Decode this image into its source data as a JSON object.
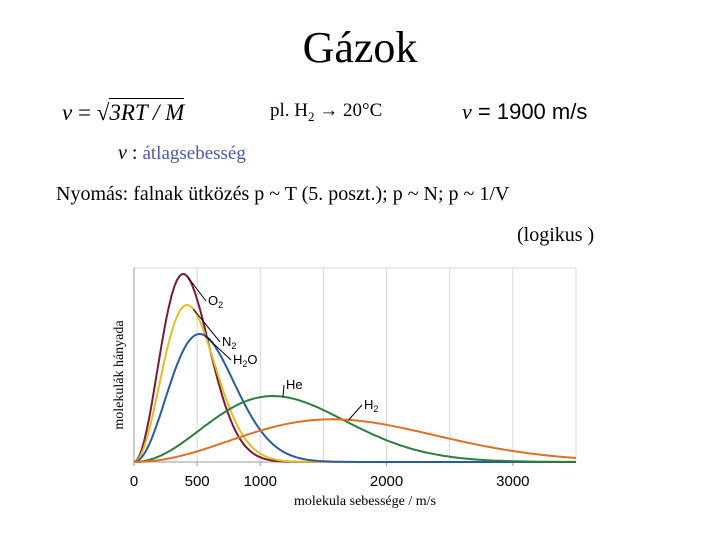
{
  "title": "Gázok",
  "formula": {
    "lhs": "v",
    "eq": "=",
    "rhs": "3RT / M"
  },
  "example": {
    "text": "pl. H",
    "sub": "2",
    "rest": " → 20°C"
  },
  "result": {
    "lhs": "v",
    "eq": " = ",
    "value": "1900 m/s"
  },
  "symbol_def": {
    "symbol": "v",
    "sep": " : ",
    "label": "átlagsebesség"
  },
  "pressure": {
    "text": "Nyomás: falnak ütközés   p ~ T (5. poszt.);    p ~ N;  p ~ 1/V"
  },
  "logikus": "(logikus )",
  "chart_data": {
    "type": "line",
    "xlabel": "molekula sebessége / m/s",
    "ylabel": "molekulák hányada",
    "xlim": [
      0,
      3500
    ],
    "ylim": [
      0,
      1
    ],
    "x_ticks": [
      "0",
      "500",
      "1000",
      "2000",
      "3000"
    ],
    "x_tick_values": [
      0,
      500,
      1000,
      2000,
      3000
    ],
    "grid": true,
    "series": [
      {
        "name": "O2",
        "color": "#7a1a3a",
        "peak_speed": 390,
        "peak": 0.97
      },
      {
        "name": "N2",
        "color": "#e0c020",
        "peak_speed": 420,
        "peak": 0.81
      },
      {
        "name": "H2O",
        "color": "#2a5aa0",
        "peak_speed": 520,
        "peak": 0.66
      },
      {
        "name": "He",
        "color": "#2e7d3a",
        "peak_speed": 1100,
        "peak": 0.34
      },
      {
        "name": "H2",
        "color": "#e07020",
        "peak_speed": 1570,
        "peak": 0.22
      }
    ],
    "series_labels": {
      "O2": {
        "text": "O",
        "sub": "2"
      },
      "N2": {
        "text": "N",
        "sub": "2"
      },
      "H2O": {
        "text": "H",
        "sub": "2",
        "post": "O"
      },
      "He": {
        "text": "He",
        "sub": "",
        "post": ""
      },
      "H2": {
        "text": "H",
        "sub": "2"
      }
    }
  }
}
